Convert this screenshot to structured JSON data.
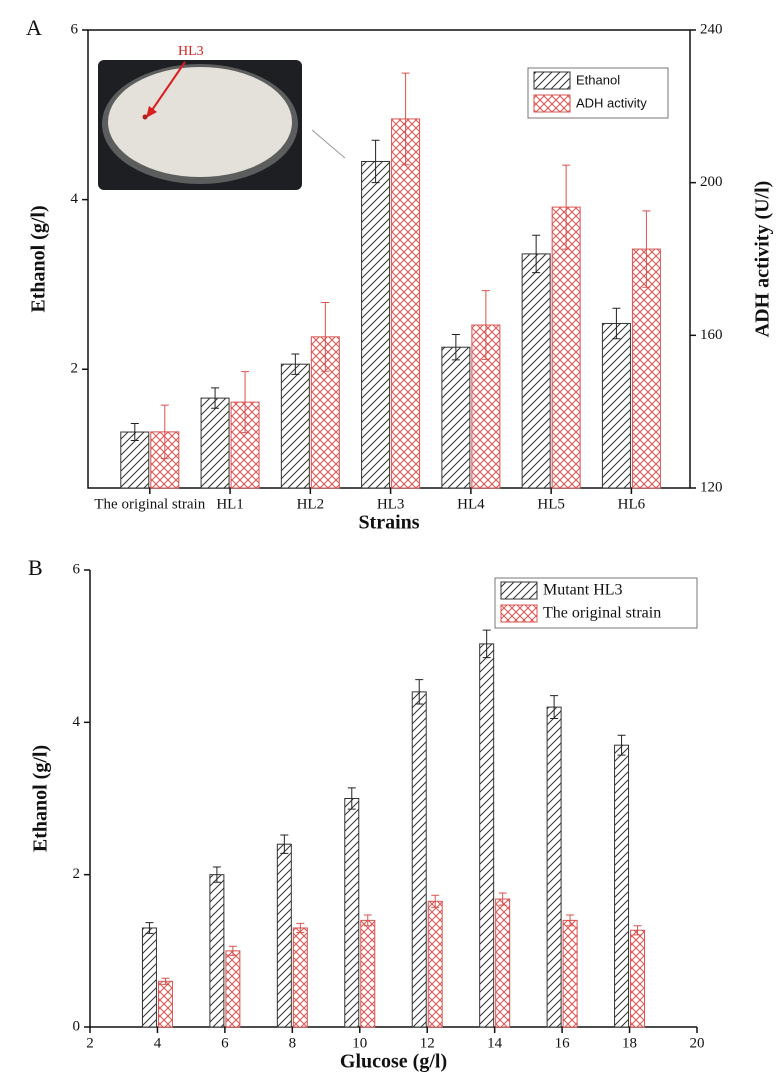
{
  "chart_data": [
    {
      "type": "bar",
      "panel_label": "A",
      "categories": [
        "The original strain",
        "HL1",
        "HL2",
        "HL3",
        "HL4",
        "HL5",
        "HL6"
      ],
      "x_label": "Strains",
      "y_label": "Ethanol (g/l)",
      "y2_label": "ADH activity (U/l)",
      "ylim": [
        0.6,
        6
      ],
      "yticks": [
        2,
        4,
        6
      ],
      "y2lim": [
        120,
        240
      ],
      "y2ticks": [
        120,
        160,
        200,
        240
      ],
      "series": [
        {
          "name": "Ethanol",
          "color": "#333333",
          "values": [
            1.26,
            1.66,
            2.06,
            4.45,
            2.26,
            3.36,
            2.54
          ],
          "errors": [
            0.1,
            0.12,
            0.12,
            0.25,
            0.15,
            0.22,
            0.18
          ]
        },
        {
          "name": "ADH activity",
          "color": "#d9534f",
          "axis": "y2",
          "values": [
            134.7,
            142.5,
            159.6,
            216.7,
            162.7,
            193.6,
            182.6
          ],
          "errors": [
            7,
            8,
            9,
            12,
            9,
            11,
            10
          ]
        }
      ],
      "legend": "upper right",
      "inset_label": "HL3"
    },
    {
      "type": "bar",
      "panel_label": "B",
      "x": [
        4,
        6,
        8,
        10,
        12,
        14,
        16,
        18
      ],
      "x_label": "Glucose (g/l)",
      "y_label": "Ethanol (g/l)",
      "xlim": [
        2,
        20
      ],
      "xticks": [
        2,
        4,
        6,
        8,
        10,
        12,
        14,
        16,
        18,
        20
      ],
      "ylim": [
        0,
        6
      ],
      "yticks": [
        0,
        2,
        4,
        6
      ],
      "series": [
        {
          "name": "Mutant HL3",
          "color": "#333333",
          "values": [
            1.3,
            2.0,
            2.4,
            3.0,
            4.4,
            5.03,
            4.2,
            3.7
          ],
          "errors": [
            0.07,
            0.1,
            0.12,
            0.14,
            0.16,
            0.18,
            0.15,
            0.13
          ]
        },
        {
          "name": "The original strain",
          "color": "#d9534f",
          "values": [
            0.6,
            1.0,
            1.3,
            1.4,
            1.65,
            1.68,
            1.4,
            1.27
          ],
          "errors": [
            0.04,
            0.06,
            0.06,
            0.07,
            0.08,
            0.08,
            0.07,
            0.06
          ]
        }
      ],
      "legend": "upper right"
    }
  ]
}
